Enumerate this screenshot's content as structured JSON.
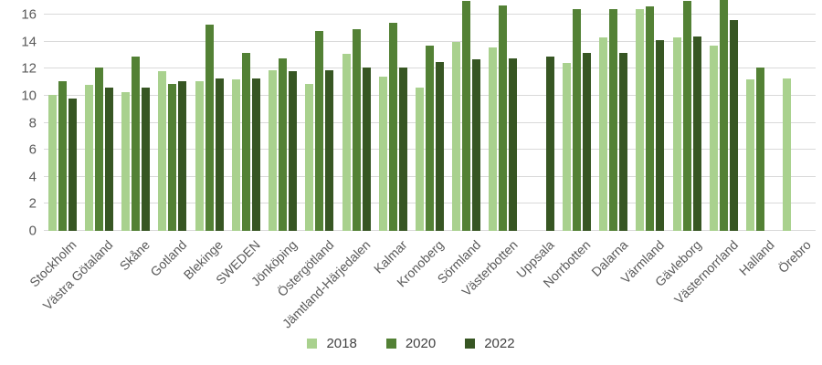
{
  "chart_data": {
    "type": "bar",
    "title": "",
    "categories": [
      "Stockholm",
      "Västra Götaland",
      "Skåne",
      "Gotland",
      "Blekinge",
      "SWEDEN",
      "Jönköping",
      "Östergötland",
      "Jämtland-Härjedalen",
      "Kalmar",
      "Kronoberg",
      "Sörmland",
      "Västerbotten",
      "Uppsala",
      "Norrbotten",
      "Dalarna",
      "Värmland",
      "Gävleborg",
      "Västernorrland",
      "Halland",
      "Örebro"
    ],
    "series": [
      {
        "name": "2018",
        "color": "#a9d18e",
        "values": [
          10.1,
          10.8,
          10.3,
          11.8,
          11.1,
          11.2,
          11.9,
          10.9,
          13.1,
          11.4,
          10.6,
          14.0,
          13.6,
          null,
          12.4,
          14.3,
          16.4,
          14.3,
          13.7,
          11.2,
          11.3
        ]
      },
      {
        "name": "2020",
        "color": "#538135",
        "values": [
          11.1,
          12.1,
          12.9,
          10.9,
          15.3,
          13.2,
          12.8,
          14.8,
          14.9,
          15.4,
          13.7,
          17.0,
          16.7,
          null,
          16.4,
          16.4,
          16.6,
          17.0,
          17.3,
          12.1,
          null
        ]
      },
      {
        "name": "2022",
        "color": "#375623",
        "values": [
          9.8,
          10.6,
          10.6,
          11.1,
          11.3,
          11.3,
          11.8,
          11.9,
          12.1,
          12.1,
          12.5,
          12.7,
          12.8,
          12.9,
          13.2,
          13.2,
          14.1,
          14.4,
          15.6,
          null,
          null
        ]
      }
    ],
    "ylim": [
      0,
      16
    ],
    "ytick_step": 2,
    "ytick_labels": [
      "0",
      "2",
      "4",
      "6",
      "8",
      "10",
      "12",
      "14",
      "16"
    ],
    "grid": true,
    "legend_position": "bottom",
    "colors": {
      "gridline": "#d9d9d9",
      "axis_text": "#595959",
      "legend_text": "#404040",
      "background": "#ffffff"
    }
  }
}
